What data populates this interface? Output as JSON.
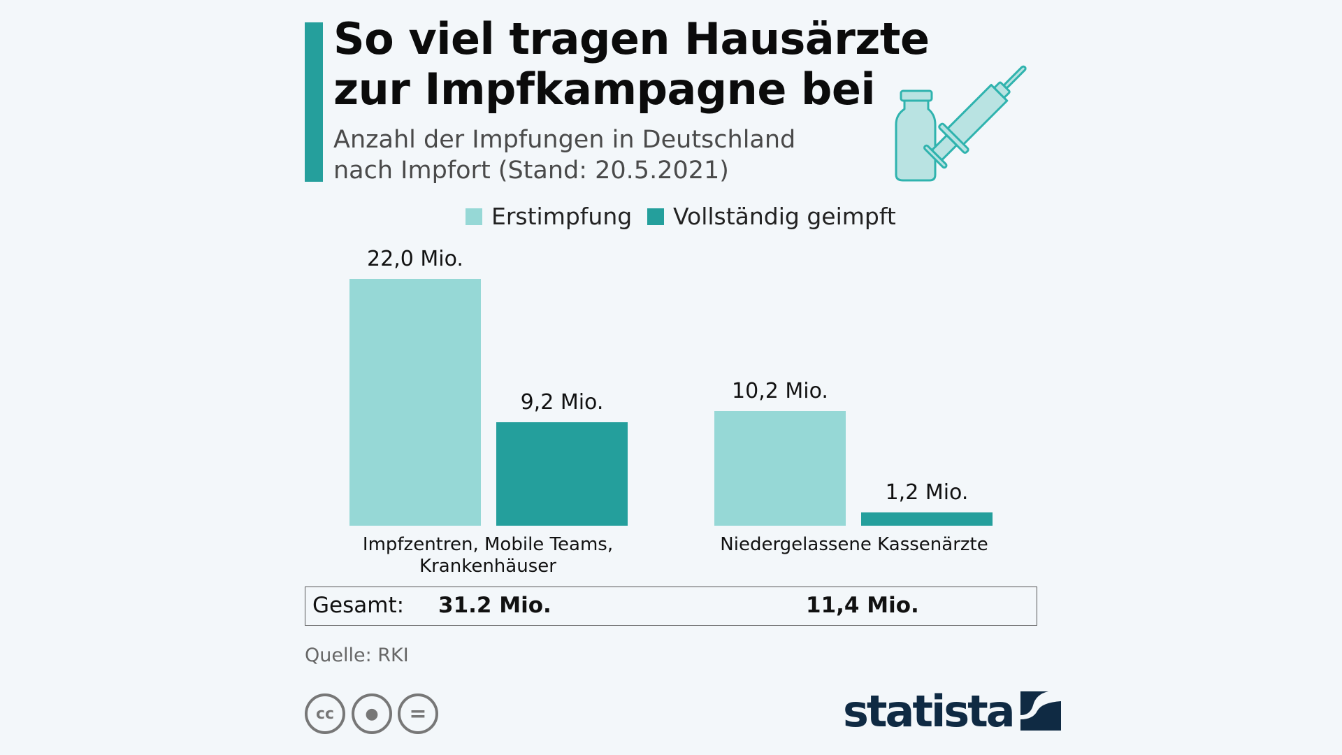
{
  "chart_data": {
    "type": "bar",
    "title": "So viel tragen Hausärzte zur Impfkampagne bei",
    "subtitle": "Anzahl der Impfungen in Deutschland nach Impfort (Stand: 20.5.2021)",
    "categories": [
      "Impfzentren, Mobile Teams, Krankenhäuser",
      "Niedergelassene Kassenärzte"
    ],
    "series": [
      {
        "name": "Erstimpfung",
        "color": "#96d8d6",
        "values": [
          22.0,
          10.2
        ],
        "labels": [
          "22,0 Mio.",
          "10,2 Mio."
        ]
      },
      {
        "name": "Vollständig geimpft",
        "color": "#249f9c",
        "values": [
          9.2,
          1.2
        ],
        "labels": [
          "9,2 Mio.",
          "1,2 Mio."
        ]
      }
    ],
    "xlabel": "",
    "ylabel": "",
    "ylim": [
      0,
      22
    ],
    "legend": "top-center",
    "totals": {
      "label": "Gesamt:",
      "values": [
        "31.2 Mio.",
        "11,4 Mio."
      ]
    }
  },
  "title_lines": [
    "So viel tragen Hausärzte",
    "zur Impfkampagne bei"
  ],
  "subtitle_lines": [
    "Anzahl der Impfungen in Deutschland",
    "nach Impfort (Stand: 20.5.2021)"
  ],
  "category_lines": [
    [
      "Impfzentren, Mobile Teams,",
      "Krankenhäuser"
    ],
    [
      "Niedergelassene Kassenärzte"
    ]
  ],
  "source": "Quelle: RKI",
  "logo": "statista",
  "license_icons": [
    "cc-icon",
    "by-icon",
    "nd-icon"
  ]
}
